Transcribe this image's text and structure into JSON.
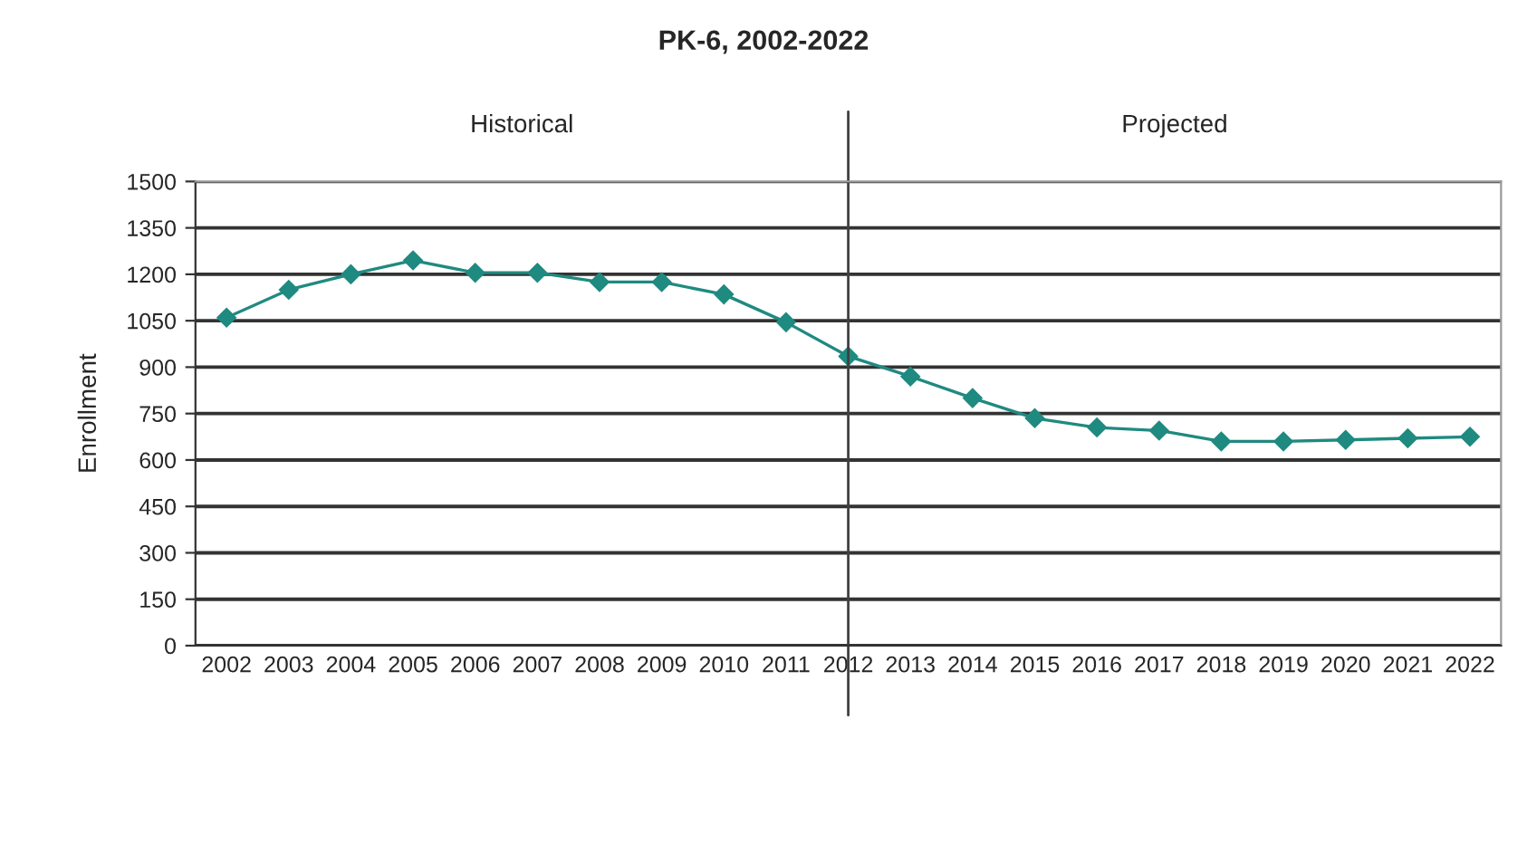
{
  "chart_data": {
    "type": "line",
    "title": "PK-6, 2002-2022",
    "ylabel": "Enrollment",
    "categories": [
      "2002",
      "2003",
      "2004",
      "2005",
      "2006",
      "2007",
      "2008",
      "2009",
      "2010",
      "2011",
      "2012",
      "2013",
      "2014",
      "2015",
      "2016",
      "2017",
      "2018",
      "2019",
      "2020",
      "2021",
      "2022"
    ],
    "series": [
      {
        "color": "#1f8a80",
        "values": [
          1060,
          1150,
          1200,
          1245,
          1205,
          1205,
          1175,
          1175,
          1135,
          1045,
          935,
          870,
          800,
          735,
          705,
          695,
          660,
          660,
          665,
          670,
          675
        ]
      }
    ],
    "ylim": [
      0,
      1500
    ],
    "yticks": [
      0,
      150,
      300,
      450,
      600,
      750,
      900,
      1050,
      1200,
      1350,
      1500
    ],
    "grid": "y",
    "marker": "diamond",
    "line_style": "solid",
    "legend": false,
    "ref_lines": [
      {
        "axis": "x",
        "value": "2012",
        "color": "#404040"
      }
    ],
    "annotations": [
      "Historical",
      "Projected"
    ]
  }
}
